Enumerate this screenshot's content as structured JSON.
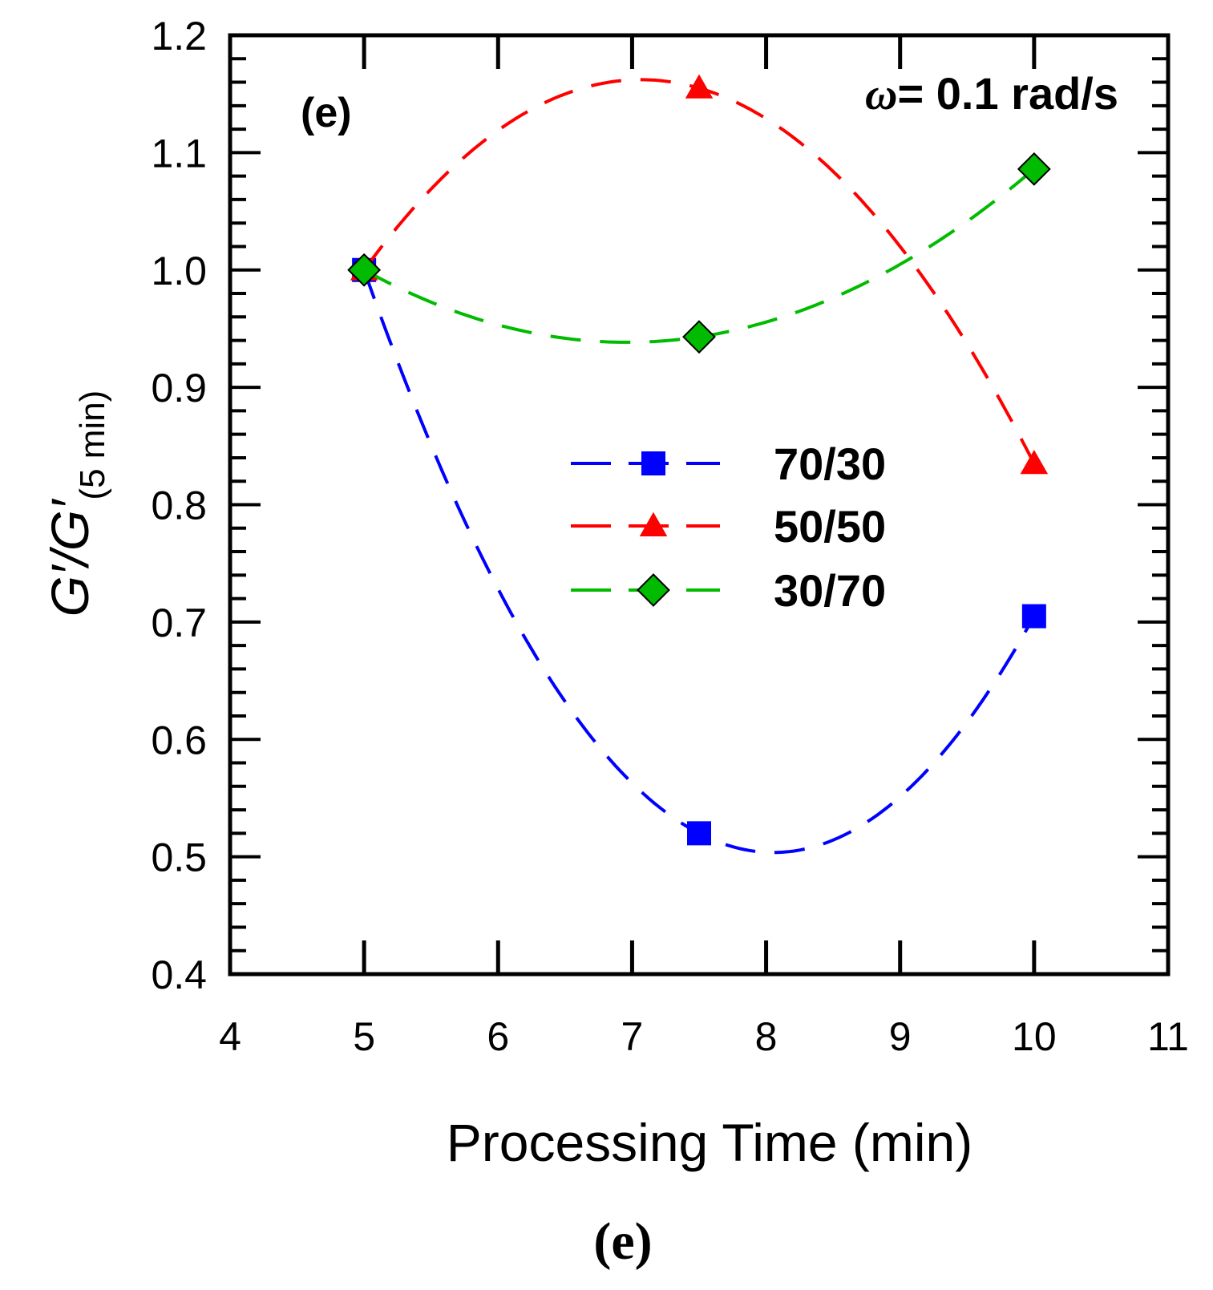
{
  "chart_data": {
    "type": "line",
    "panel_label": "(e)",
    "condition": {
      "symbol": "ω",
      "text": "= 0.1 rad/s"
    },
    "xlabel": "Processing Time (min)",
    "ylabel": {
      "main": "G′/G′",
      "subscript": "(5 min)"
    },
    "xlim": [
      4,
      11
    ],
    "ylim": [
      0.4,
      1.2
    ],
    "x_ticks": [
      4,
      5,
      6,
      7,
      8,
      9,
      10,
      11
    ],
    "x_tick_labels": [
      "4",
      "5",
      "6",
      "7",
      "8",
      "9",
      "10",
      "11"
    ],
    "y_ticks": [
      0.4,
      0.5,
      0.6,
      0.7,
      0.8,
      0.9,
      1.0,
      1.1,
      1.2
    ],
    "y_tick_labels": [
      "0.4",
      "0.5",
      "0.6",
      "0.7",
      "0.8",
      "0.9",
      "1.0",
      "1.1",
      "1.2"
    ],
    "legend_position": "center-right",
    "x": [
      5,
      7.5,
      10
    ],
    "series": [
      {
        "name": "70/30",
        "values": [
          1.0,
          0.52,
          0.705
        ],
        "color": "#0000ff",
        "marker": "square"
      },
      {
        "name": "50/50",
        "values": [
          1.0,
          1.155,
          0.835
        ],
        "color": "#ff0000",
        "marker": "triangle"
      },
      {
        "name": "30/70",
        "values": [
          1.0,
          0.943,
          1.086
        ],
        "color": "#00bb00",
        "marker": "diamond"
      }
    ],
    "caption": "(e)"
  }
}
